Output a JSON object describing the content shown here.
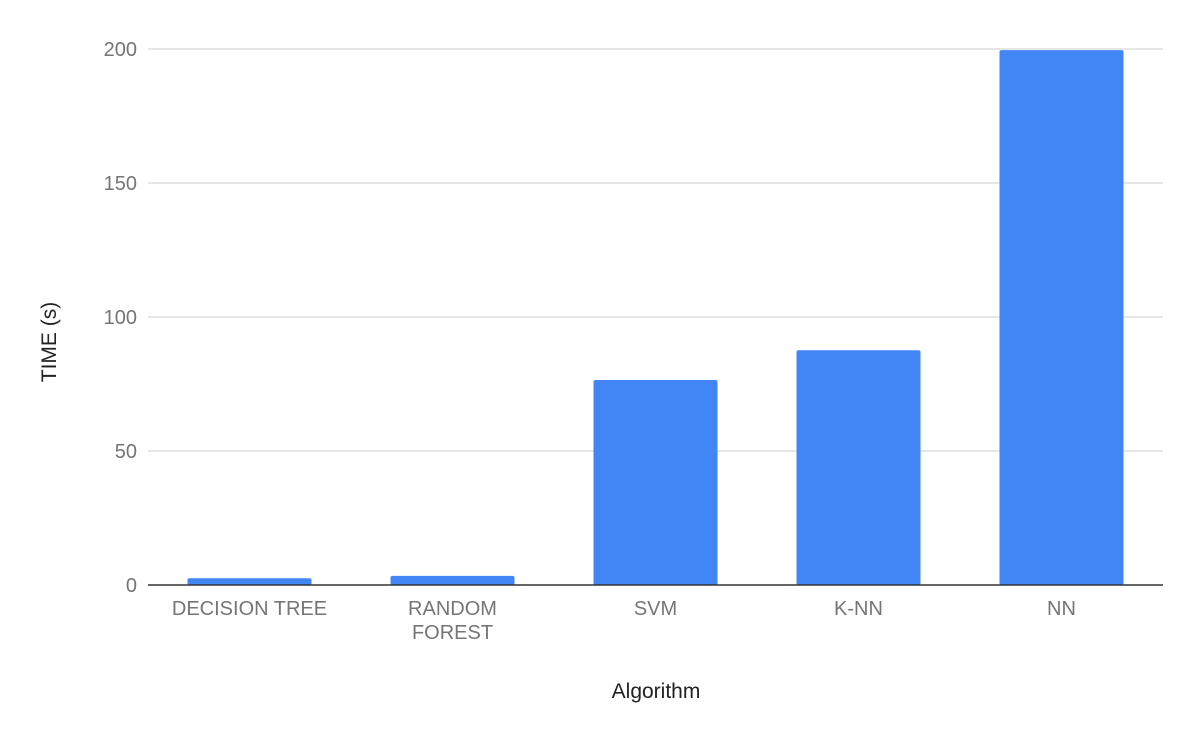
{
  "chart_data": {
    "type": "bar",
    "title": "",
    "xlabel": "Algorithm",
    "ylabel": "TIME (s)",
    "categories": [
      [
        "DECISION TREE"
      ],
      [
        "RANDOM",
        "FOREST"
      ],
      [
        "SVM"
      ],
      [
        "K-NN"
      ],
      [
        "NN"
      ]
    ],
    "values": [
      2.5,
      3.4,
      76.5,
      87.6,
      199.6
    ],
    "ylim": [
      0,
      200
    ],
    "yticks": [
      "0",
      "50",
      "100",
      "150",
      "200"
    ],
    "grid": true,
    "legend": "none",
    "bar_color": "#4285F4"
  }
}
